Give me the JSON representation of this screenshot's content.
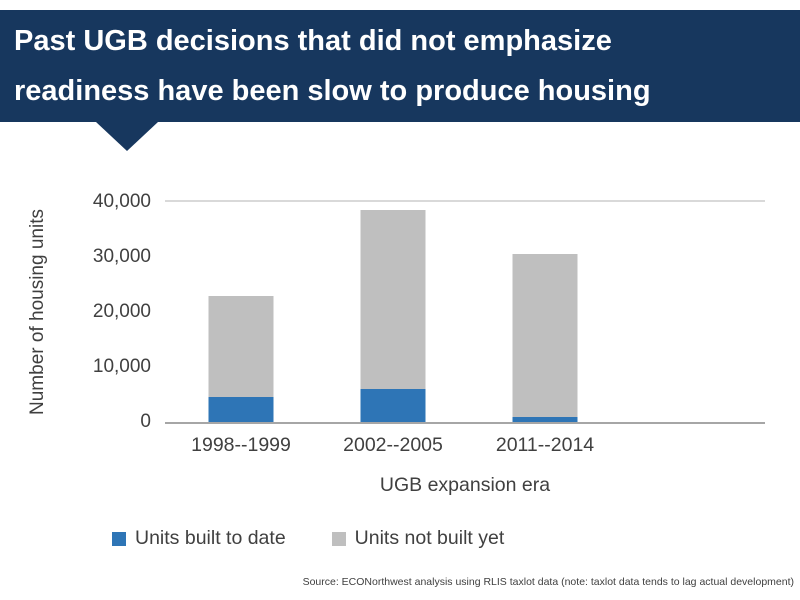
{
  "slide": {
    "title_lines": [
      "Past UGB decisions that did not emphasize",
      "readiness have been slow to produce housing"
    ],
    "banner_color": "#17375E",
    "source": "Source: ECONorthwest analysis using RLIS taxlot data (note: taxlot data tends to lag actual development)"
  },
  "chart_data": {
    "type": "bar",
    "stacked": true,
    "title": "",
    "categories": [
      "1998--1999",
      "2002--2005",
      "2011--2014"
    ],
    "series": [
      {
        "name": "Units built to date",
        "color": "#2E75B6",
        "values": [
          4500,
          6000,
          1000
        ]
      },
      {
        "name": "Units not built yet",
        "color": "#BFBFBF",
        "values": [
          18500,
          32500,
          29500
        ]
      }
    ],
    "totals": [
      23000,
      38500,
      30500
    ],
    "xlabel": "UGB expansion era",
    "ylabel": "Number of housing units",
    "ylim": [
      0,
      40000
    ],
    "yticks": [
      0,
      10000,
      20000,
      30000,
      40000
    ],
    "ytick_labels": [
      "0",
      "10,000",
      "20,000",
      "30,000",
      "40,000"
    ],
    "grid": false,
    "legend_position": "bottom"
  }
}
